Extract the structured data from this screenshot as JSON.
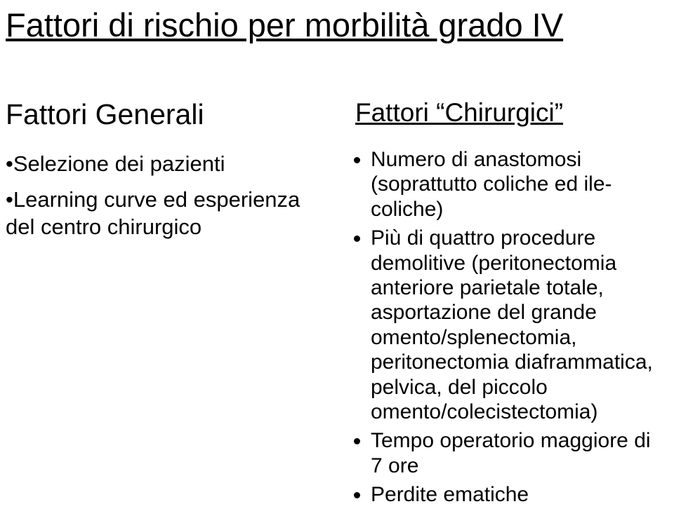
{
  "title": "Fattori di rischio per morbilità grado IV",
  "left": {
    "heading": "Fattori Generali",
    "items": [
      "•Selezione dei pazienti",
      "•Learning curve ed esperienza del centro chirurgico"
    ]
  },
  "right": {
    "heading": "Fattori “Chirurgici”",
    "items": [
      "Numero di anastomosi (soprattutto coliche ed ile-coliche)",
      "Più di quattro procedure demolitive (peritonectomia anteriore parietale totale, asportazione del grande omento/splenectomia, peritonectomia diaframmatica, pelvica, del piccolo omento/colecistectomia)",
      "Tempo operatorio maggiore di 7 ore",
      "Perdite ematiche"
    ]
  }
}
